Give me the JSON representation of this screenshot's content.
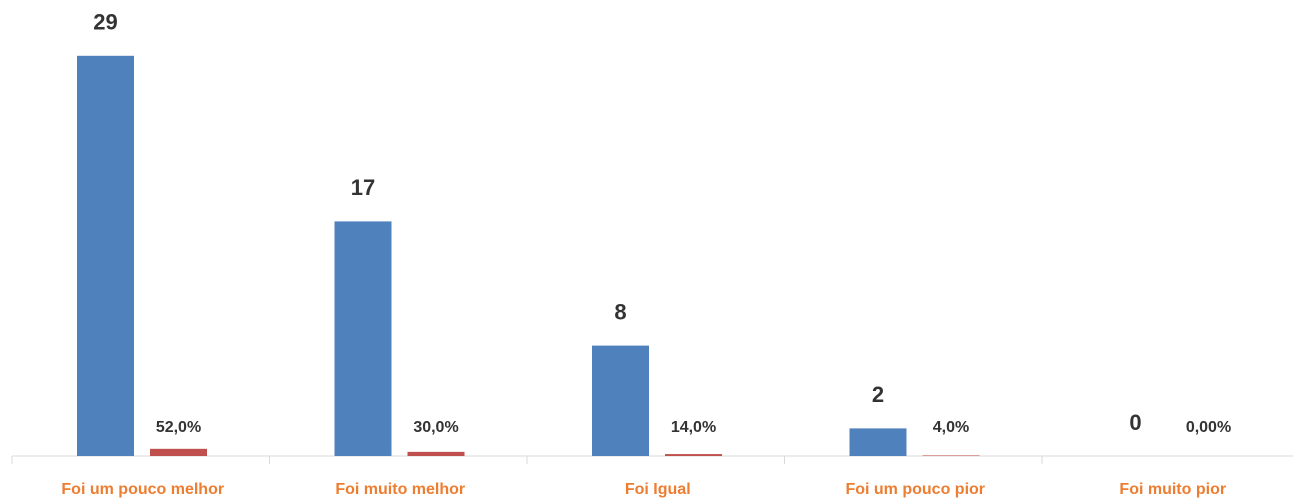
{
  "chart_data": {
    "type": "bar",
    "categories": [
      "Foi um pouco melhor",
      "Foi muito melhor",
      "Foi Igual",
      "Foi um pouco pior",
      "Foi muito pior"
    ],
    "series": [
      {
        "color": "#4f81bd",
        "values": [
          29,
          17,
          8,
          2,
          0
        ]
      },
      {
        "color": "#c0504d",
        "values": [
          0.52,
          0.3,
          0.14,
          0.04,
          0
        ],
        "value_labels": [
          "52,0%",
          "30,0%",
          "14,0%",
          "4,0%",
          "0,00%"
        ]
      }
    ],
    "ylim": [
      0,
      30
    ]
  }
}
